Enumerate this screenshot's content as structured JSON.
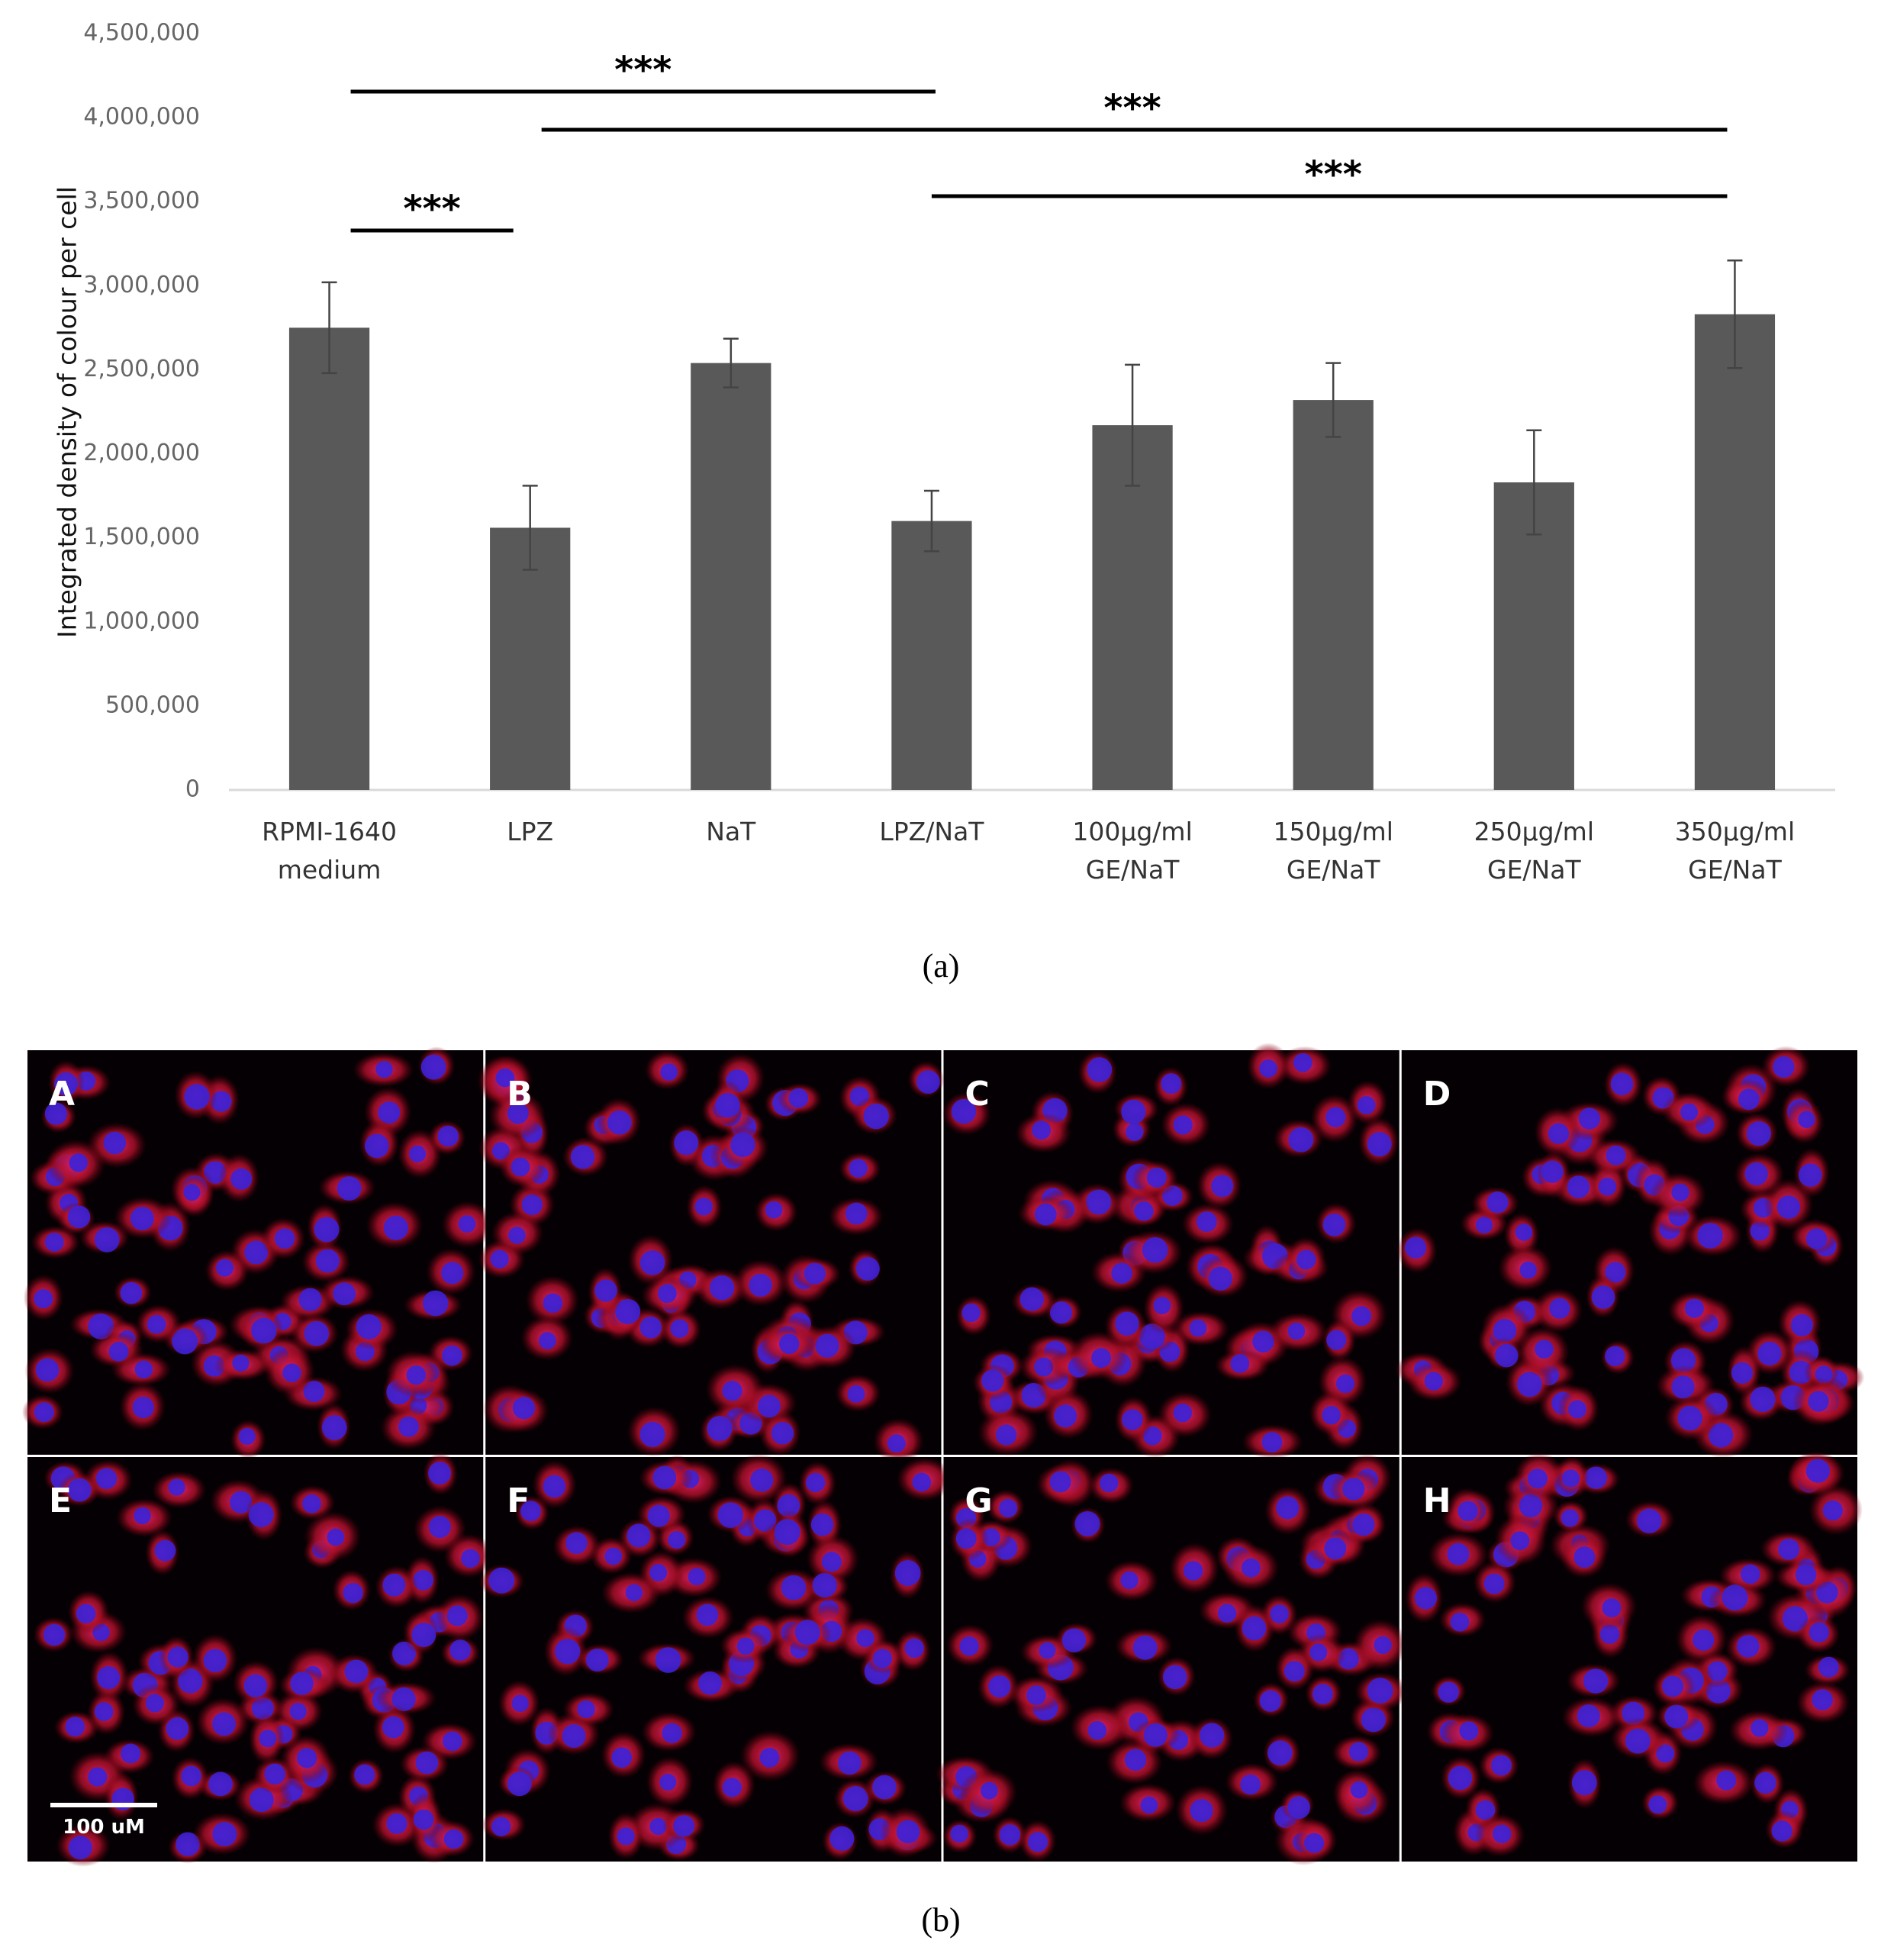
{
  "chart_data": {
    "type": "bar",
    "y_label": "Integrated density of colour per cell",
    "categories": [
      "RPMI-1640 medium",
      "LPZ",
      "NaT",
      "LPZ/NaT",
      "100µg/ml GE/NaT",
      "150µg/ml GE/NaT",
      "250µg/ml GE/NaT",
      "350µg/ml GE/NaT"
    ],
    "values": [
      2750000,
      1560000,
      2540000,
      1600000,
      2170000,
      2320000,
      1830000,
      2830000
    ],
    "errors": [
      270000,
      250000,
      145000,
      180000,
      360000,
      220000,
      310000,
      320000
    ],
    "color": "#595959",
    "ylim": [
      0,
      4500000
    ],
    "yticks": [
      0,
      {
        "value": 500000,
        "label": "500,000"
      },
      {
        "value": 1000000,
        "label": "1,000,000"
      },
      {
        "value": 1500000,
        "label": "1,500,000"
      },
      {
        "value": 2000000,
        "label": "2,000,000"
      },
      {
        "value": 2500000,
        "label": "2,500,000"
      },
      {
        "value": 3000000,
        "label": "3,000,000"
      },
      {
        "value": 3500000,
        "label": "3,500,000"
      },
      {
        "value": 4000000,
        "label": "4,000,000"
      },
      {
        "value": 4500000,
        "label": "4,500,000"
      }
    ],
    "grid": false,
    "significance": [
      {
        "from": 0,
        "to": 3,
        "label": "***"
      },
      {
        "from": 1,
        "to": 7,
        "label": "***"
      },
      {
        "from": 0,
        "to": 1,
        "label": "***"
      },
      {
        "from": 3,
        "to": 7,
        "label": "***"
      }
    ],
    "caption": "(a)"
  },
  "images": {
    "panels": [
      "A",
      "B",
      "C",
      "D",
      "E",
      "F",
      "G",
      "H"
    ],
    "scale_bar": "100 uM",
    "caption": "(b)"
  }
}
